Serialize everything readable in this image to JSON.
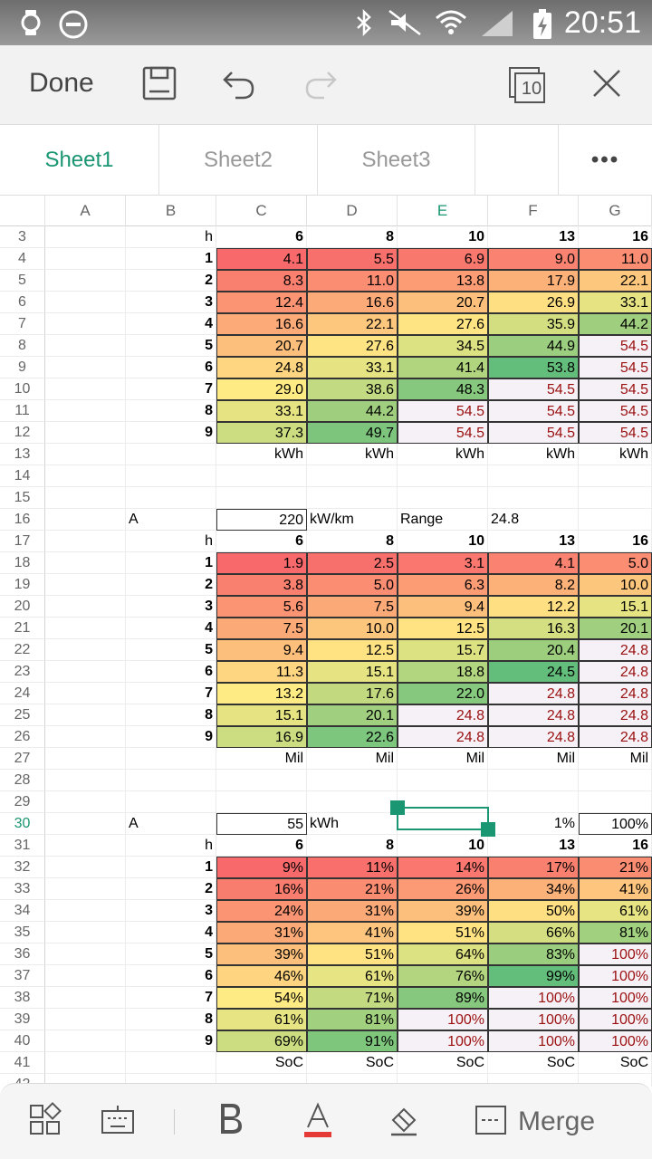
{
  "status": {
    "time": "20:51"
  },
  "toolbar": {
    "done_label": "Done",
    "sheet_count": "10"
  },
  "tabs": [
    {
      "label": "Sheet1",
      "active": true
    },
    {
      "label": "Sheet2",
      "active": false
    },
    {
      "label": "Sheet3",
      "active": false
    },
    {
      "label": "•••",
      "active": false
    }
  ],
  "columns": [
    "A",
    "B",
    "C",
    "D",
    "E",
    "F",
    "G"
  ],
  "selected_column": "E",
  "selected_row": "30",
  "rows": [
    {
      "n": "3",
      "cells": [
        "",
        "h",
        "6",
        "8",
        "10",
        "13",
        "16"
      ],
      "kind": "header"
    },
    {
      "n": "4",
      "cells": [
        "",
        "1",
        "4.1",
        "5.5",
        "6.9",
        "9.0",
        "11.0"
      ],
      "kind": "data",
      "set": "kwh"
    },
    {
      "n": "5",
      "cells": [
        "",
        "2",
        "8.3",
        "11.0",
        "13.8",
        "17.9",
        "22.1"
      ],
      "kind": "data",
      "set": "kwh"
    },
    {
      "n": "6",
      "cells": [
        "",
        "3",
        "12.4",
        "16.6",
        "20.7",
        "26.9",
        "33.1"
      ],
      "kind": "data",
      "set": "kwh"
    },
    {
      "n": "7",
      "cells": [
        "",
        "4",
        "16.6",
        "22.1",
        "27.6",
        "35.9",
        "44.2"
      ],
      "kind": "data",
      "set": "kwh"
    },
    {
      "n": "8",
      "cells": [
        "",
        "5",
        "20.7",
        "27.6",
        "34.5",
        "44.9",
        "54.5"
      ],
      "kind": "data",
      "set": "kwh"
    },
    {
      "n": "9",
      "cells": [
        "",
        "6",
        "24.8",
        "33.1",
        "41.4",
        "53.8",
        "54.5"
      ],
      "kind": "data",
      "set": "kwh"
    },
    {
      "n": "10",
      "cells": [
        "",
        "7",
        "29.0",
        "38.6",
        "48.3",
        "54.5",
        "54.5"
      ],
      "kind": "data",
      "set": "kwh"
    },
    {
      "n": "11",
      "cells": [
        "",
        "8",
        "33.1",
        "44.2",
        "54.5",
        "54.5",
        "54.5"
      ],
      "kind": "data",
      "set": "kwh"
    },
    {
      "n": "12",
      "cells": [
        "",
        "9",
        "37.3",
        "49.7",
        "54.5",
        "54.5",
        "54.5"
      ],
      "kind": "data",
      "set": "kwh"
    },
    {
      "n": "13",
      "cells": [
        "",
        "",
        "kWh",
        "kWh",
        "kWh",
        "kWh",
        "kWh"
      ],
      "kind": "unit"
    },
    {
      "n": "14",
      "cells": [
        "",
        "",
        "",
        "",
        "",
        "",
        ""
      ],
      "kind": "empty"
    },
    {
      "n": "15",
      "cells": [
        "",
        "",
        "",
        "",
        "",
        "",
        ""
      ],
      "kind": "empty"
    },
    {
      "n": "16",
      "cells": [
        "",
        "A",
        "220",
        "kW/km",
        "Range",
        "24.8",
        ""
      ],
      "kind": "param"
    },
    {
      "n": "17",
      "cells": [
        "",
        "h",
        "6",
        "8",
        "10",
        "13",
        "16"
      ],
      "kind": "header"
    },
    {
      "n": "18",
      "cells": [
        "",
        "1",
        "1.9",
        "2.5",
        "3.1",
        "4.1",
        "5.0"
      ],
      "kind": "data",
      "set": "mil"
    },
    {
      "n": "19",
      "cells": [
        "",
        "2",
        "3.8",
        "5.0",
        "6.3",
        "8.2",
        "10.0"
      ],
      "kind": "data",
      "set": "mil"
    },
    {
      "n": "20",
      "cells": [
        "",
        "3",
        "5.6",
        "7.5",
        "9.4",
        "12.2",
        "15.1"
      ],
      "kind": "data",
      "set": "mil"
    },
    {
      "n": "21",
      "cells": [
        "",
        "4",
        "7.5",
        "10.0",
        "12.5",
        "16.3",
        "20.1"
      ],
      "kind": "data",
      "set": "mil"
    },
    {
      "n": "22",
      "cells": [
        "",
        "5",
        "9.4",
        "12.5",
        "15.7",
        "20.4",
        "24.8"
      ],
      "kind": "data",
      "set": "mil"
    },
    {
      "n": "23",
      "cells": [
        "",
        "6",
        "11.3",
        "15.1",
        "18.8",
        "24.5",
        "24.8"
      ],
      "kind": "data",
      "set": "mil"
    },
    {
      "n": "24",
      "cells": [
        "",
        "7",
        "13.2",
        "17.6",
        "22.0",
        "24.8",
        "24.8"
      ],
      "kind": "data",
      "set": "mil"
    },
    {
      "n": "25",
      "cells": [
        "",
        "8",
        "15.1",
        "20.1",
        "24.8",
        "24.8",
        "24.8"
      ],
      "kind": "data",
      "set": "mil"
    },
    {
      "n": "26",
      "cells": [
        "",
        "9",
        "16.9",
        "22.6",
        "24.8",
        "24.8",
        "24.8"
      ],
      "kind": "data",
      "set": "mil"
    },
    {
      "n": "27",
      "cells": [
        "",
        "",
        "Mil",
        "Mil",
        "Mil",
        "Mil",
        "Mil"
      ],
      "kind": "unit"
    },
    {
      "n": "28",
      "cells": [
        "",
        "",
        "",
        "",
        "",
        "",
        ""
      ],
      "kind": "empty"
    },
    {
      "n": "29",
      "cells": [
        "",
        "",
        "",
        "",
        "",
        "",
        ""
      ],
      "kind": "empty"
    },
    {
      "n": "30",
      "cells": [
        "",
        "A",
        "55",
        "kWh",
        "",
        "1%",
        "100%"
      ],
      "kind": "param2"
    },
    {
      "n": "31",
      "cells": [
        "",
        "h",
        "6",
        "8",
        "10",
        "13",
        "16"
      ],
      "kind": "header"
    },
    {
      "n": "32",
      "cells": [
        "",
        "1",
        "9%",
        "11%",
        "14%",
        "17%",
        "21%"
      ],
      "kind": "data",
      "set": "soc"
    },
    {
      "n": "33",
      "cells": [
        "",
        "2",
        "16%",
        "21%",
        "26%",
        "34%",
        "41%"
      ],
      "kind": "data",
      "set": "soc"
    },
    {
      "n": "34",
      "cells": [
        "",
        "3",
        "24%",
        "31%",
        "39%",
        "50%",
        "61%"
      ],
      "kind": "data",
      "set": "soc"
    },
    {
      "n": "35",
      "cells": [
        "",
        "4",
        "31%",
        "41%",
        "51%",
        "66%",
        "81%"
      ],
      "kind": "data",
      "set": "soc"
    },
    {
      "n": "36",
      "cells": [
        "",
        "5",
        "39%",
        "51%",
        "64%",
        "83%",
        "100%"
      ],
      "kind": "data",
      "set": "soc"
    },
    {
      "n": "37",
      "cells": [
        "",
        "6",
        "46%",
        "61%",
        "76%",
        "99%",
        "100%"
      ],
      "kind": "data",
      "set": "soc"
    },
    {
      "n": "38",
      "cells": [
        "",
        "7",
        "54%",
        "71%",
        "89%",
        "100%",
        "100%"
      ],
      "kind": "data",
      "set": "soc"
    },
    {
      "n": "39",
      "cells": [
        "",
        "8",
        "61%",
        "81%",
        "100%",
        "100%",
        "100%"
      ],
      "kind": "data",
      "set": "soc"
    },
    {
      "n": "40",
      "cells": [
        "",
        "9",
        "69%",
        "91%",
        "100%",
        "100%",
        "100%"
      ],
      "kind": "data",
      "set": "soc"
    },
    {
      "n": "41",
      "cells": [
        "",
        "",
        "SoC",
        "SoC",
        "SoC",
        "SoC",
        "SoC"
      ],
      "kind": "unit"
    },
    {
      "n": "42",
      "cells": [
        "",
        "",
        "",
        "",
        "",
        "",
        ""
      ],
      "kind": "empty"
    }
  ],
  "color_scale": {
    "kwh": {
      "min": 4.1,
      "max": 53.8,
      "cap": "54.5"
    },
    "mil": {
      "min": 1.9,
      "max": 24.5,
      "cap": "24.8"
    },
    "soc": {
      "min": 9,
      "max": 99,
      "cap": "100%"
    },
    "low": "#f8696b",
    "mid": "#ffeb84",
    "high": "#63be7b",
    "cap_bg": "#f6f1f6",
    "cap_text": "#9a1010"
  },
  "bottombar": {
    "merge_label": "Merge",
    "accent": "#e53935"
  },
  "accent": "#1a9672"
}
